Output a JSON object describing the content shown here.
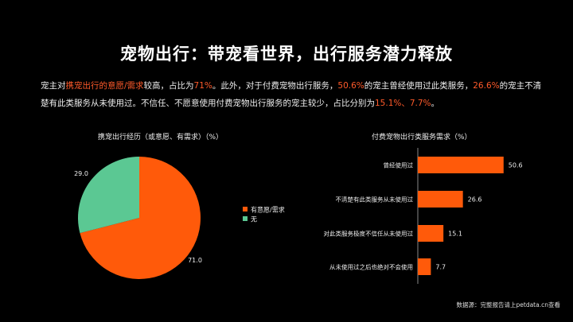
{
  "title": "宠物出行：带宠看世界，出行服务潜力释放",
  "paragraph": {
    "segments": [
      {
        "text": "宠主对",
        "highlight": false
      },
      {
        "text": "携宠出行的意愿/需求",
        "highlight": true
      },
      {
        "text": "较高，占比为",
        "highlight": false
      },
      {
        "text": "71%",
        "highlight": true
      },
      {
        "text": "。此外，对于付费宠物出行服务，",
        "highlight": false
      },
      {
        "text": "50.6%",
        "highlight": true
      },
      {
        "text": "的宠主曾经使用过此类服务，",
        "highlight": false
      },
      {
        "text": "26.6%",
        "highlight": true
      },
      {
        "text": "的宠主不清楚有此类服务从未使用过。不信任、不愿意使用付费宠物出行服务的宠主较少，占比分别为",
        "highlight": false
      },
      {
        "text": "15.1%、7.7%",
        "highlight": true
      },
      {
        "text": "。",
        "highlight": false
      }
    ]
  },
  "colors": {
    "accent": "#ff5a0a",
    "green": "#5bc893",
    "highlight_text": "#ff5a2a"
  },
  "source": "数据源：完整报告请上petdata.cn查看",
  "chart_data": [
    {
      "type": "pie",
      "title": "携宠出行经历（或意愿、有需求）（%）",
      "categories": [
        "有意愿/需求",
        "无"
      ],
      "values": [
        71.0,
        29.0
      ],
      "value_labels": [
        "71.0",
        "29.0"
      ],
      "colors": [
        "#ff5a0a",
        "#5bc893"
      ],
      "legend": "right"
    },
    {
      "type": "bar",
      "orientation": "horizontal",
      "title": "付费宠物出行类服务需求（%）",
      "categories": [
        "曾经使用过",
        "不清楚有此类服务从未使用过",
        "对此类服务极度不信任从未使用过",
        "从未使用过之后也绝对不会使用"
      ],
      "values": [
        50.6,
        26.6,
        15.1,
        7.7
      ],
      "value_labels": [
        "50.6",
        "26.6",
        "15.1",
        "7.7"
      ],
      "color": "#ff5a0a",
      "grid": false
    }
  ]
}
